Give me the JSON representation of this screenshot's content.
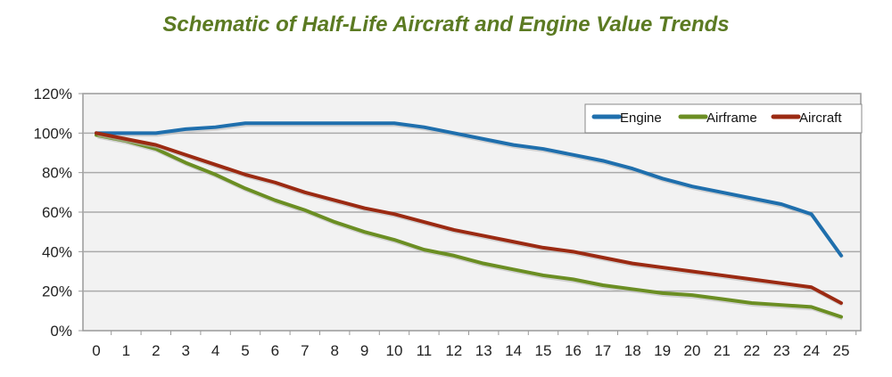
{
  "chart_data": {
    "type": "line",
    "title": "Schematic of Half-Life Aircraft and Engine Value Trends",
    "xlabel": "",
    "ylabel": "",
    "x": [
      0,
      1,
      2,
      3,
      4,
      5,
      6,
      7,
      8,
      9,
      10,
      11,
      12,
      13,
      14,
      15,
      16,
      17,
      18,
      19,
      20,
      21,
      22,
      23,
      24,
      25
    ],
    "ylim": [
      0,
      120
    ],
    "yticks": [
      "0%",
      "20%",
      "40%",
      "60%",
      "80%",
      "100%",
      "120%"
    ],
    "grid": true,
    "legend_position": "top-right",
    "series": [
      {
        "name": "Engine",
        "color": "#1f6fad",
        "values": [
          100,
          100,
          100,
          102,
          103,
          105,
          105,
          105,
          105,
          105,
          105,
          103,
          100,
          97,
          94,
          92,
          89,
          86,
          82,
          77,
          73,
          70,
          67,
          64,
          59,
          38
        ]
      },
      {
        "name": "Airframe",
        "color": "#6b8e23",
        "values": [
          99,
          96,
          92,
          85,
          79,
          72,
          66,
          61,
          55,
          50,
          46,
          41,
          38,
          34,
          31,
          28,
          26,
          23,
          21,
          19,
          18,
          16,
          14,
          13,
          12,
          7
        ]
      },
      {
        "name": "Aircraft",
        "color": "#9b2a12",
        "values": [
          100,
          97,
          94,
          89,
          84,
          79,
          75,
          70,
          66,
          62,
          59,
          55,
          51,
          48,
          45,
          42,
          40,
          37,
          34,
          32,
          30,
          28,
          26,
          24,
          22,
          14
        ]
      }
    ]
  }
}
